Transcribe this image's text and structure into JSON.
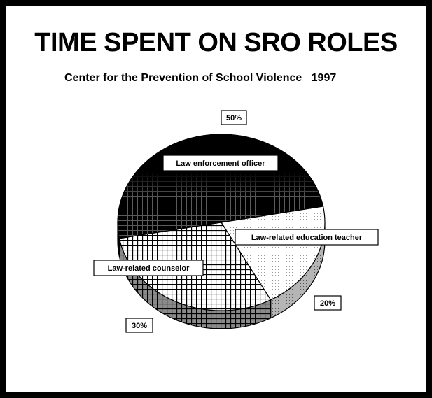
{
  "chart_data": {
    "type": "pie",
    "title": "TIME SPENT ON SRO ROLES",
    "subtitle": "Center for the Prevention of School Violence   1997",
    "categories": [
      "Law enforcement officer",
      "Law-related education teacher",
      "Law-related counselor"
    ],
    "values": [
      50,
      20,
      30
    ],
    "value_labels": [
      "50%",
      "20%",
      "30%"
    ],
    "three_d": true,
    "patterns": [
      "solid-black / dark grid",
      "white dotted",
      "white grid"
    ]
  }
}
